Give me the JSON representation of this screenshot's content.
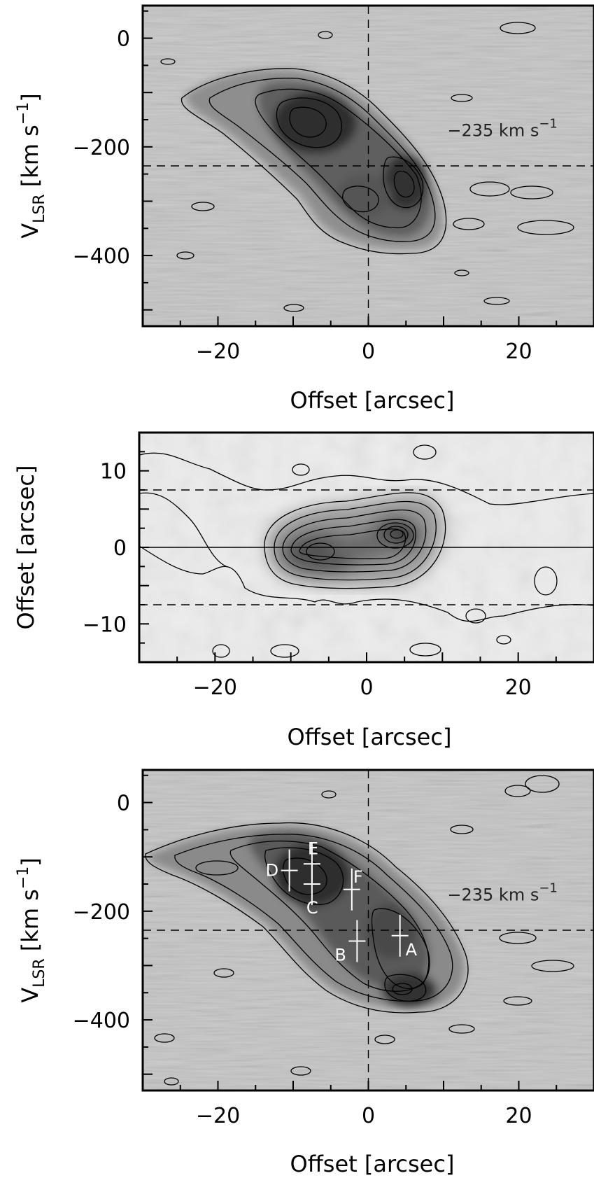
{
  "chart_data": [
    {
      "type": "heatmap",
      "title": "",
      "xlabel": "Offset [arcsec]",
      "ylabel": "V_LSR [km s^-1]",
      "ylabel_main": "V",
      "ylabel_sub": "LSR",
      "ylabel_rest": " [km s",
      "ylabel_sup": "−1",
      "ylabel_close": "]",
      "xlim": [
        -30,
        30
      ],
      "ylim": [
        -530,
        60
      ],
      "xticks": [
        -20,
        0,
        20
      ],
      "xtick_labels": [
        "−20",
        "0",
        "20"
      ],
      "yticks": [
        0,
        -200,
        -400
      ],
      "ytick_labels": [
        "0",
        "−200",
        "−400"
      ],
      "reference_lines": [
        {
          "orientation": "horizontal",
          "value": -235,
          "style": "dashed"
        },
        {
          "orientation": "vertical",
          "value": 0,
          "style": "dashed"
        }
      ],
      "annotation": {
        "text": "−235 km s",
        "sup": "−1",
        "x": 10.5,
        "y": -180
      },
      "emission_peaks": [
        {
          "x": -8,
          "y": -150,
          "level": 0.95
        },
        {
          "x": 4,
          "y": -265,
          "level": 0.85
        },
        {
          "x": -3,
          "y": -290,
          "level": 0.55
        }
      ]
    },
    {
      "type": "heatmap",
      "title": "",
      "xlabel": "Offset [arcsec]",
      "ylabel": "Offset [arcsec]",
      "xlim": [
        -30,
        30
      ],
      "ylim": [
        -15,
        15
      ],
      "xticks": [
        -20,
        0,
        20
      ],
      "xtick_labels": [
        "−20",
        "0",
        "20"
      ],
      "yticks": [
        10,
        0,
        -10
      ],
      "ytick_labels": [
        "10",
        "0",
        "−10"
      ],
      "reference_lines": [
        {
          "orientation": "horizontal",
          "value": 7.5,
          "style": "dashed"
        },
        {
          "orientation": "horizontal",
          "value": -7.5,
          "style": "dashed"
        },
        {
          "orientation": "horizontal",
          "value": 0,
          "style": "solid"
        }
      ],
      "emission_peaks": [
        {
          "x": 3.5,
          "y": 1.5,
          "level": 0.95
        },
        {
          "x": -6.5,
          "y": -0.5,
          "level": 0.75
        }
      ]
    },
    {
      "type": "heatmap",
      "title": "",
      "xlabel": "Offset [arcsec]",
      "ylabel": "V_LSR [km s^-1]",
      "ylabel_main": "V",
      "ylabel_sub": "LSR",
      "ylabel_rest": " [km s",
      "ylabel_sup": "−1",
      "ylabel_close": "]",
      "xlim": [
        -30,
        30
      ],
      "ylim": [
        -530,
        60
      ],
      "xticks": [
        -20,
        0,
        20
      ],
      "xtick_labels": [
        "−20",
        "0",
        "20"
      ],
      "yticks": [
        0,
        -200,
        -400
      ],
      "ytick_labels": [
        "0",
        "−200",
        "−400"
      ],
      "reference_lines": [
        {
          "orientation": "horizontal",
          "value": -235,
          "style": "dashed"
        },
        {
          "orientation": "vertical",
          "value": 0,
          "style": "dashed"
        }
      ],
      "annotation": {
        "text": "−235 km s",
        "sup": "−1",
        "x": 10.5,
        "y": -180
      },
      "markers": [
        {
          "label": "A",
          "x": 4.2,
          "y": -245
        },
        {
          "label": "B",
          "x": -1.5,
          "y": -255
        },
        {
          "label": "C",
          "x": -7.5,
          "y": -150
        },
        {
          "label": "D",
          "x": -10.5,
          "y": -125
        },
        {
          "label": "E",
          "x": -7.5,
          "y": -113
        },
        {
          "label": "F",
          "x": -2.2,
          "y": -160
        }
      ],
      "emission_peaks": [
        {
          "x": -7.5,
          "y": -150,
          "level": 0.9
        },
        {
          "x": 4,
          "y": -315,
          "level": 0.9
        },
        {
          "x": 2.5,
          "y": -240,
          "level": 0.6
        }
      ]
    }
  ]
}
